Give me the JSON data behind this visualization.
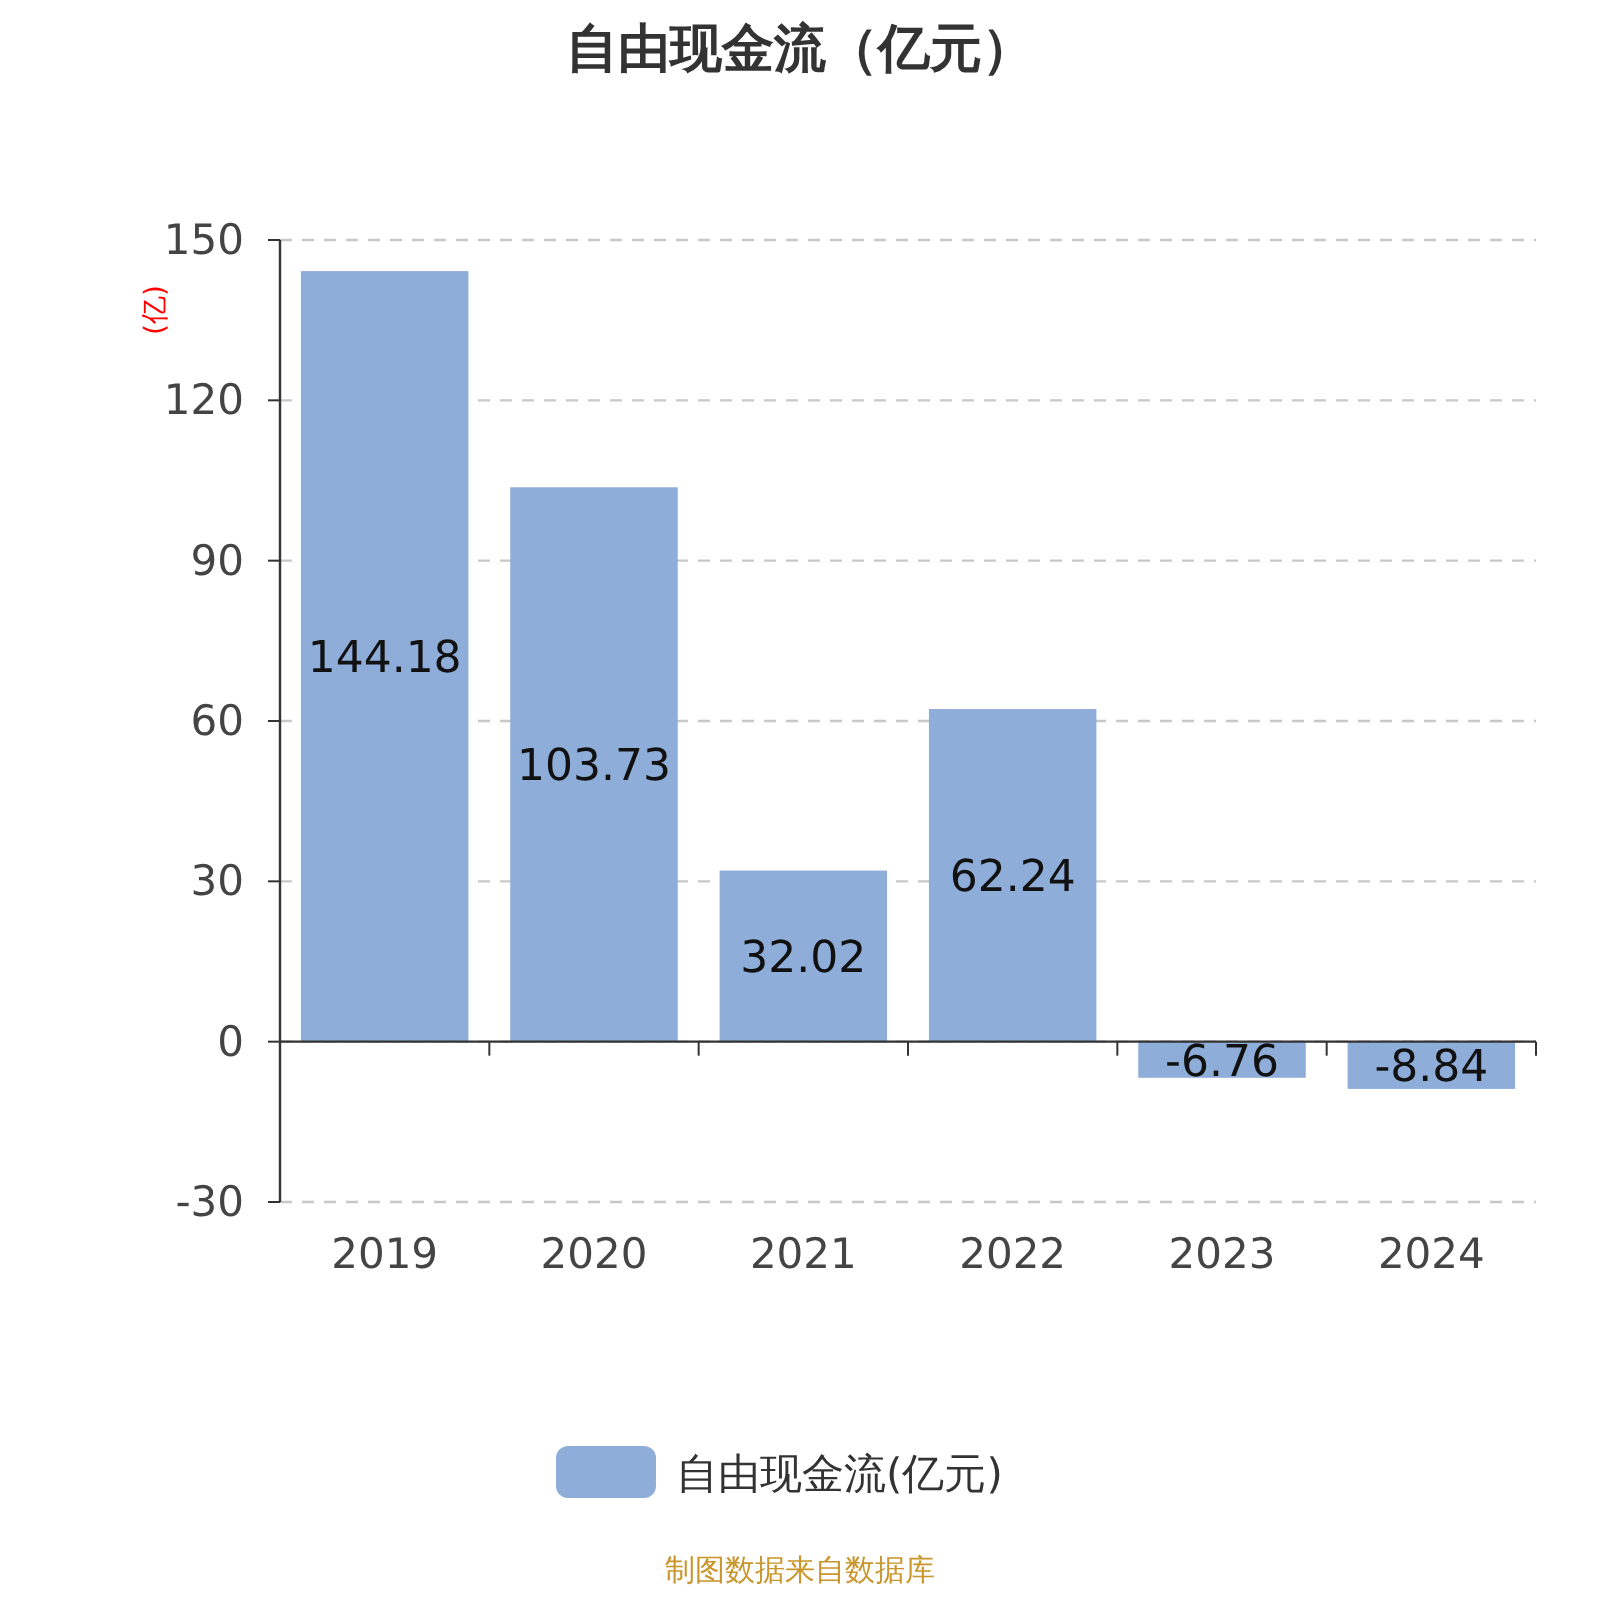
{
  "chart_data": {
    "type": "bar",
    "title": "自由现金流（亿元）",
    "ylabel": "(亿)",
    "categories": [
      "2019",
      "2020",
      "2021",
      "2022",
      "2023",
      "2024"
    ],
    "series": [
      {
        "name": "自由现金流(亿元)",
        "color": "#8eadd9",
        "values": [
          144.18,
          103.73,
          32.02,
          62.24,
          -6.76,
          -8.84
        ]
      }
    ],
    "ylim": [
      -30,
      150
    ],
    "yticks": [
      -30,
      0,
      30,
      60,
      90,
      120,
      150
    ],
    "grid": "y",
    "legend": "bottom",
    "data_labels": true,
    "annotations": [
      "制图数据来自数据库"
    ]
  }
}
